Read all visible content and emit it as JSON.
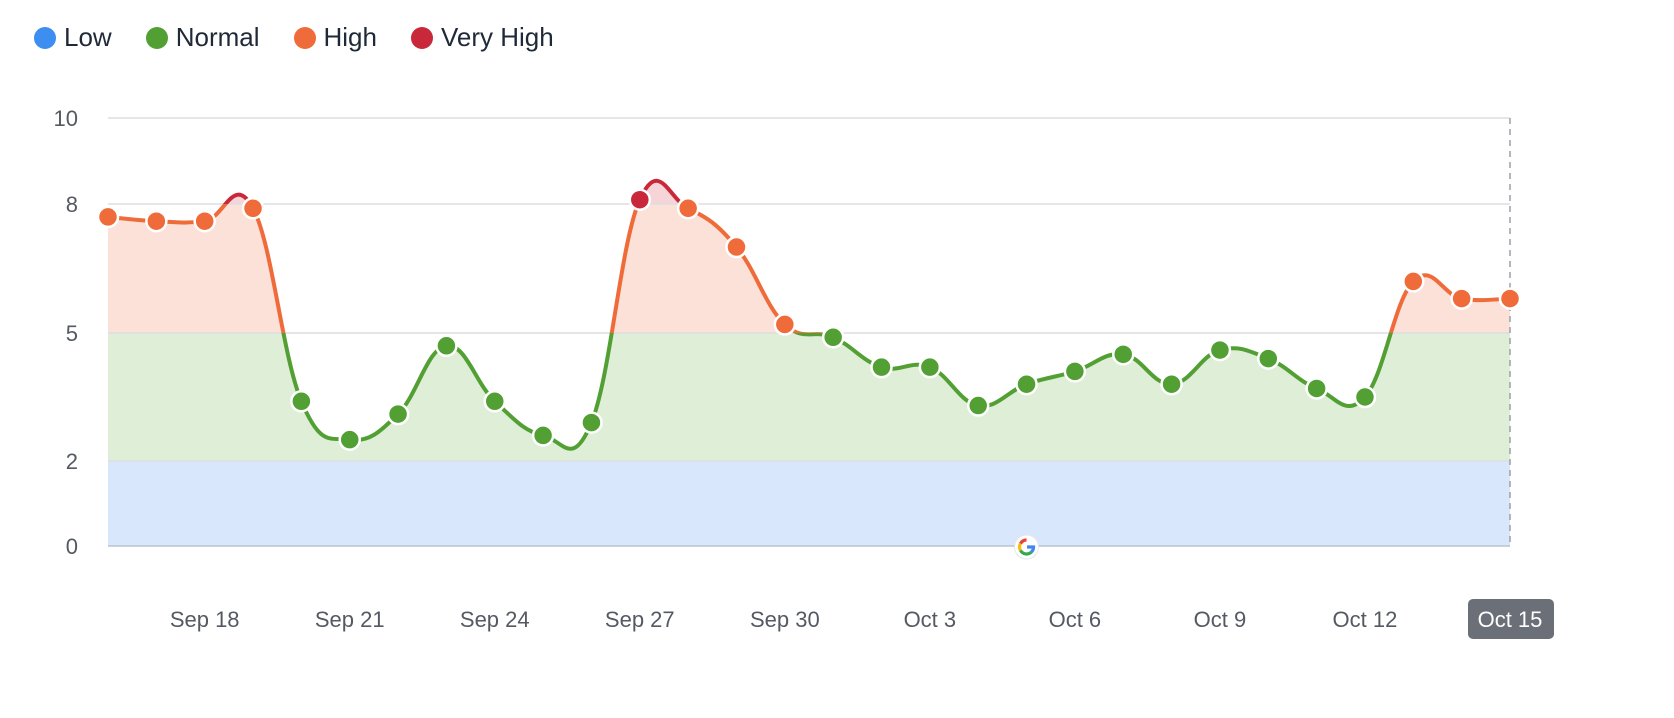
{
  "legend": [
    {
      "label": "Low",
      "color": "#3d8ef0"
    },
    {
      "label": "Normal",
      "color": "#52a034"
    },
    {
      "label": "High",
      "color": "#ef6b3a"
    },
    {
      "label": "Very High",
      "color": "#c9283a"
    }
  ],
  "chart_data": {
    "type": "area",
    "ylim": [
      0,
      10
    ],
    "yticks": [
      0,
      2,
      5,
      8,
      10
    ],
    "bands": [
      {
        "name": "Low",
        "from": 0,
        "to": 2,
        "fill": "#d8e7fb"
      },
      {
        "name": "Normal",
        "from": 2,
        "to": 5,
        "fill": "#dfeed7"
      },
      {
        "name": "High",
        "from": 5,
        "to": 8,
        "fill": "#fbe1d8"
      },
      {
        "name": "Very High",
        "from": 8,
        "to": 10,
        "fill": "#f6d4d8"
      }
    ],
    "x_labels": [
      "Sep 18",
      "Sep 21",
      "Sep 24",
      "Sep 27",
      "Sep 30",
      "Oct 3",
      "Oct 6",
      "Oct 9",
      "Oct 12",
      "Oct 15"
    ],
    "x_label_dates": [
      "Sep 18",
      "Sep 21",
      "Sep 24",
      "Sep 27",
      "Sep 30",
      "Oct 3",
      "Oct 6",
      "Oct 9",
      "Oct 12",
      "Oct 15"
    ],
    "dates": [
      "Sep 16",
      "Sep 17",
      "Sep 18",
      "Sep 19",
      "Sep 20",
      "Sep 21",
      "Sep 22",
      "Sep 23",
      "Sep 24",
      "Sep 25",
      "Sep 26",
      "Sep 27",
      "Sep 28",
      "Sep 29",
      "Sep 30",
      "Oct 1",
      "Oct 2",
      "Oct 3",
      "Oct 4",
      "Oct 5",
      "Oct 6",
      "Oct 7",
      "Oct 8",
      "Oct 9",
      "Oct 10",
      "Oct 11",
      "Oct 12",
      "Oct 13",
      "Oct 14",
      "Oct 15"
    ],
    "values": [
      7.7,
      7.6,
      7.6,
      7.9,
      3.4,
      2.5,
      3.1,
      4.7,
      3.4,
      2.6,
      2.9,
      8.1,
      7.9,
      7.0,
      5.2,
      4.9,
      4.2,
      4.2,
      3.3,
      3.8,
      4.1,
      4.5,
      3.8,
      4.6,
      4.4,
      3.7,
      3.5,
      6.2,
      5.8,
      5.8
    ],
    "marker": {
      "date": "Oct 5",
      "icon": "google-icon"
    },
    "highlighted_x_label": "Oct 15"
  }
}
